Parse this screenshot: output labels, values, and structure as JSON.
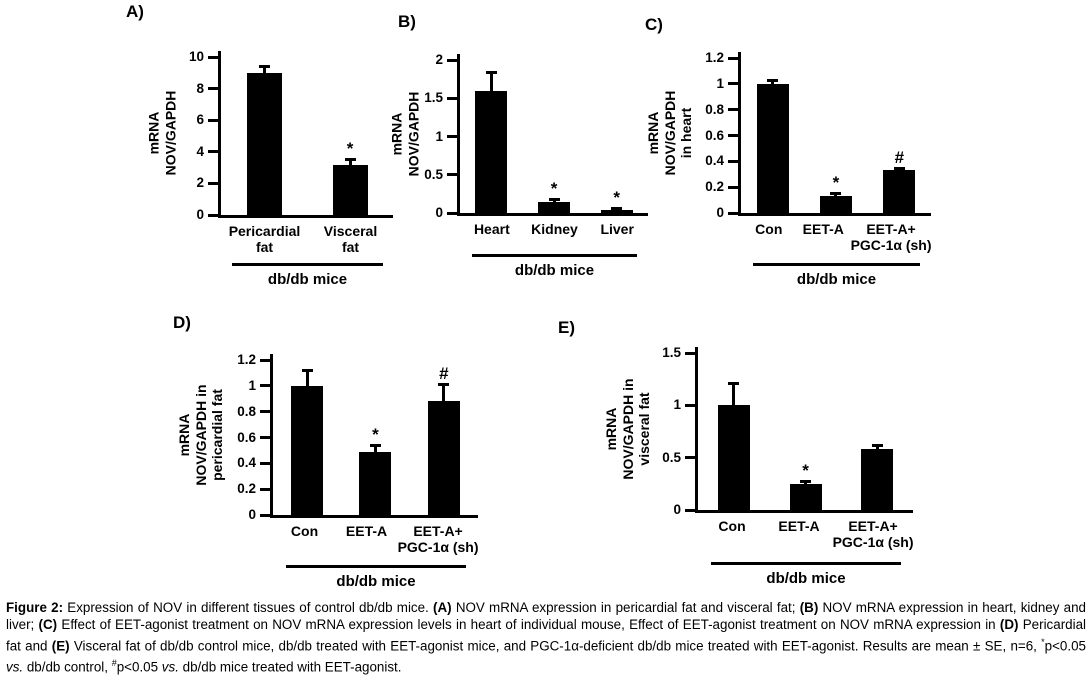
{
  "colors": {
    "bar": "#000000",
    "axis": "#000000",
    "text": "#000000",
    "background": "#ffffff"
  },
  "chart_data": [
    {
      "type": "bar",
      "panel": "A)",
      "ylabel": "mRNA\nNOV/GAPDH",
      "ylim": [
        0,
        10
      ],
      "yticks": [
        0,
        2,
        4,
        6,
        8,
        10
      ],
      "categories": [
        "Pericardial\nfat",
        "Visceral\nfat"
      ],
      "values": [
        9.0,
        3.15
      ],
      "errors": [
        0.5,
        0.45
      ],
      "sig": [
        "",
        "*"
      ],
      "group_label": "db/db mice"
    },
    {
      "type": "bar",
      "panel": "B)",
      "ylabel": "mRNA\nNOV/GAPDH",
      "ylim": [
        0,
        2
      ],
      "yticks": [
        0,
        0.5,
        1,
        1.5,
        2
      ],
      "categories": [
        "Heart",
        "Kidney",
        "Liver"
      ],
      "values": [
        1.6,
        0.15,
        0.04
      ],
      "errors": [
        0.25,
        0.05,
        0.04
      ],
      "sig": [
        "",
        "*",
        "*"
      ],
      "group_label": "db/db mice"
    },
    {
      "type": "bar",
      "panel": "C)",
      "ylabel": "mRNA\nNOV/GAPDH\nin heart",
      "ylim": [
        0,
        1.2
      ],
      "yticks": [
        0,
        0.2,
        0.4,
        0.6,
        0.8,
        1,
        1.2
      ],
      "categories": [
        "Con",
        "EET-A",
        "EET-A+\nPGC-1α (sh)"
      ],
      "values": [
        1.0,
        0.13,
        0.33
      ],
      "errors": [
        0.04,
        0.03,
        0.02
      ],
      "sig": [
        "",
        "*",
        "#"
      ],
      "group_label": "db/db mice"
    },
    {
      "type": "bar",
      "panel": "D)",
      "ylabel": "mRNA\nNOV/GAPDH in\npericardial fat",
      "ylim": [
        0,
        1.2
      ],
      "yticks": [
        0,
        0.2,
        0.4,
        0.6,
        0.8,
        1,
        1.2
      ],
      "categories": [
        "Con",
        "EET-A",
        "EET-A+\nPGC-1α (sh)"
      ],
      "values": [
        1.0,
        0.49,
        0.88
      ],
      "errors": [
        0.13,
        0.06,
        0.14
      ],
      "sig": [
        "",
        "*",
        "#"
      ],
      "group_label": "db/db mice"
    },
    {
      "type": "bar",
      "panel": "E)",
      "ylabel": "mRNA\nNOV/GAPDH in\nvisceral fat",
      "ylim": [
        0,
        1.5
      ],
      "yticks": [
        0,
        0.5,
        1,
        1.5
      ],
      "categories": [
        "Con",
        "EET-A",
        "EET-A+\nPGC-1α (sh)"
      ],
      "values": [
        1.0,
        0.25,
        0.58
      ],
      "errors": [
        0.22,
        0.04,
        0.05
      ],
      "sig": [
        "",
        "*",
        ""
      ],
      "group_label": "db/db mice"
    }
  ],
  "caption": {
    "segments": [
      {
        "t": "Figure 2:",
        "b": 1
      },
      {
        "t": " Expression of NOV in different tissues of control db/db mice. "
      },
      {
        "t": "(A)",
        "b": 1
      },
      {
        "t": " NOV mRNA expression in pericardial fat and visceral fat; "
      },
      {
        "t": "(B)",
        "b": 1
      },
      {
        "t": " NOV mRNA expression in heart, kidney and liver; "
      },
      {
        "t": "(C)",
        "b": 1
      },
      {
        "t": " Effect of EET-agonist treatment on NOV mRNA expression levels in heart of individual mouse, Effect of EET-agonist treatment on NOV mRNA expression in "
      },
      {
        "t": "(D)",
        "b": 1
      },
      {
        "t": " Pericardial fat and "
      },
      {
        "t": "(E)",
        "b": 1
      },
      {
        "t": " Visceral fat of db/db control mice, db/db treated with EET-agonist mice, and PGC-1α-deficient db/db mice treated with EET-agonist. Results are mean ± SE, n=6, "
      },
      {
        "t": "*",
        "sup": 1
      },
      {
        "t": "p<0.05 "
      },
      {
        "t": "vs.",
        "i": 1
      },
      {
        "t": " db/db control, "
      },
      {
        "t": "#",
        "sup": 1
      },
      {
        "t": "p<0.05 "
      },
      {
        "t": "vs.",
        "i": 1
      },
      {
        "t": " db/db mice treated with EET-agonist."
      }
    ]
  }
}
